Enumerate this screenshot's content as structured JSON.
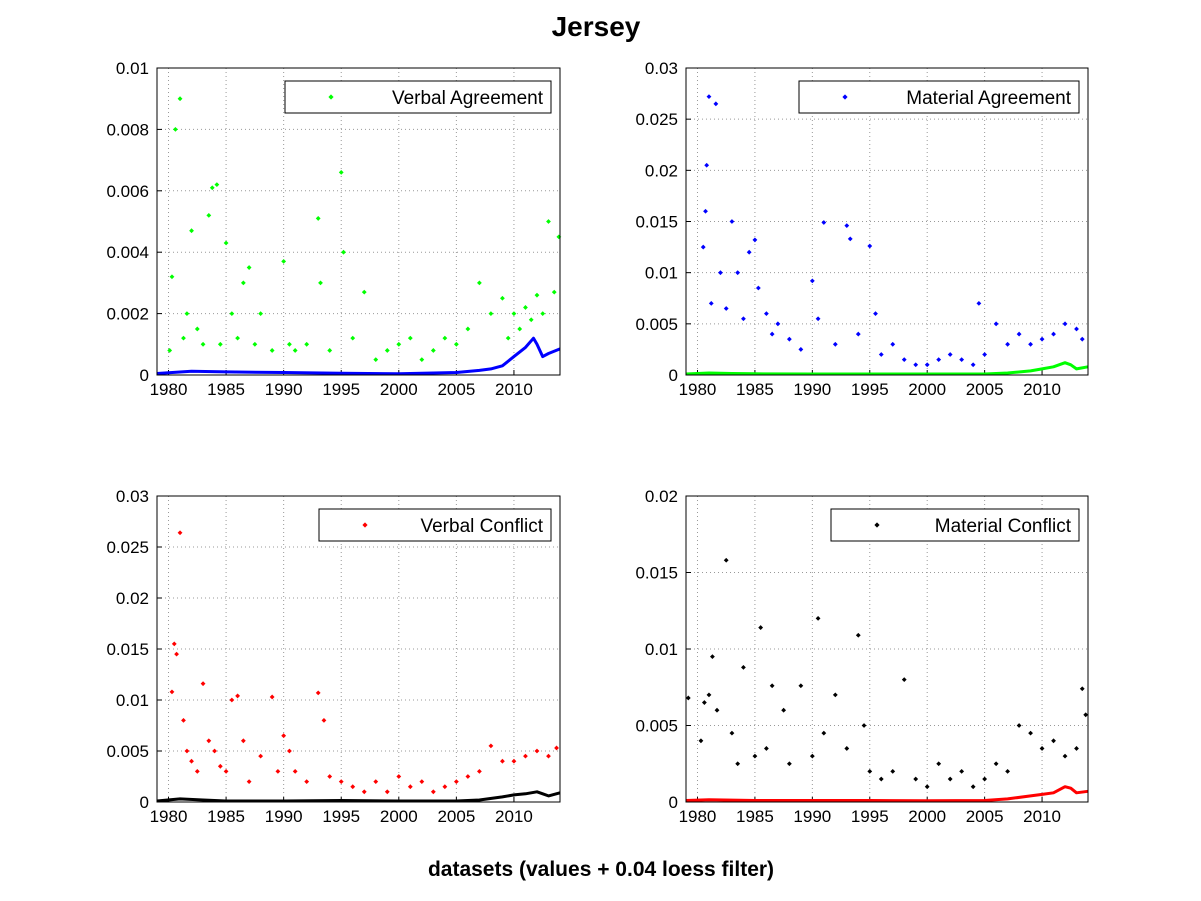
{
  "figure": {
    "title": "Jersey",
    "xlabel": "datasets (values + 0.04 loess filter)"
  },
  "chart_data": [
    {
      "type": "scatter",
      "xlim": [
        1979,
        2014
      ],
      "ylim": [
        0,
        0.01
      ],
      "x_ticks": [
        "1980",
        "1985",
        "1990",
        "1995",
        "2000",
        "2005",
        "2010"
      ],
      "y_ticks": [
        "0",
        "0.002",
        "0.004",
        "0.006",
        "0.008",
        "0.01"
      ],
      "grid": true,
      "legend_position": "top-right",
      "series": [
        {
          "name": "Verbal Agreement",
          "style": "points",
          "color": "#00ff00",
          "x": [
            1980.1,
            1980.3,
            1980.6,
            1981.0,
            1981.3,
            1981.6,
            1982.0,
            1982.5,
            1983.0,
            1983.5,
            1983.8,
            1984.2,
            1984.5,
            1985.0,
            1985.5,
            1986.0,
            1986.5,
            1987.0,
            1987.5,
            1988.0,
            1989.0,
            1990.0,
            1990.5,
            1991.0,
            1992.0,
            1993.0,
            1993.2,
            1994.0,
            1995.0,
            1995.2,
            1996.0,
            1997.0,
            1998.0,
            1999.0,
            2000.0,
            2001.0,
            2002.0,
            2003.0,
            2004.0,
            2005.0,
            2006.0,
            2007.0,
            2008.0,
            2009.0,
            2009.5,
            2010.0,
            2010.5,
            2011.0,
            2011.5,
            2012.0,
            2012.5,
            2013.0,
            2013.5,
            2013.9
          ],
          "y": [
            0.0008,
            0.0032,
            0.008,
            0.009,
            0.0012,
            0.002,
            0.0047,
            0.0015,
            0.001,
            0.0052,
            0.0061,
            0.0062,
            0.001,
            0.0043,
            0.002,
            0.0012,
            0.003,
            0.0035,
            0.001,
            0.002,
            0.0008,
            0.0037,
            0.001,
            0.0008,
            0.001,
            0.0051,
            0.003,
            0.0008,
            0.0066,
            0.004,
            0.0012,
            0.0027,
            0.0005,
            0.0008,
            0.001,
            0.0012,
            0.0005,
            0.0008,
            0.0012,
            0.001,
            0.0015,
            0.003,
            0.002,
            0.0025,
            0.0012,
            0.002,
            0.0015,
            0.0022,
            0.0018,
            0.0026,
            0.002,
            0.005,
            0.0027,
            0.0045
          ]
        },
        {
          "style": "line",
          "color": "#0000ff",
          "x": [
            1979,
            1982,
            1985,
            1990,
            1995,
            2000,
            2005,
            2007,
            2008,
            2009,
            2010,
            2011,
            2011.7,
            2012,
            2012.5,
            2013,
            2014
          ],
          "y": [
            5e-05,
            0.00012,
            0.0001,
            8e-05,
            6e-05,
            4e-05,
            8e-05,
            0.00015,
            0.0002,
            0.0003,
            0.0006,
            0.0009,
            0.0012,
            0.001,
            0.0006,
            0.0007,
            0.00085
          ]
        }
      ]
    },
    {
      "type": "scatter",
      "xlim": [
        1979,
        2014
      ],
      "ylim": [
        0,
        0.03
      ],
      "x_ticks": [
        "1980",
        "1985",
        "1990",
        "1995",
        "2000",
        "2005",
        "2010"
      ],
      "y_ticks": [
        "0",
        "0.005",
        "0.01",
        "0.015",
        "0.02",
        "0.025",
        "0.03"
      ],
      "grid": true,
      "legend_position": "top-right",
      "series": [
        {
          "name": "Material Agreement",
          "style": "points",
          "color": "#0000ff",
          "x": [
            1980.5,
            1980.7,
            1980.8,
            1981.0,
            1981.2,
            1981.6,
            1982.0,
            1982.5,
            1983.0,
            1983.5,
            1984.0,
            1984.5,
            1985.0,
            1985.3,
            1986.0,
            1986.5,
            1987.0,
            1988.0,
            1989.0,
            1990.0,
            1990.5,
            1991.0,
            1992.0,
            1993.0,
            1993.3,
            1994.0,
            1995.0,
            1995.5,
            1996.0,
            1997.0,
            1998.0,
            1999.0,
            2000.0,
            2001.0,
            2002.0,
            2003.0,
            2004.0,
            2004.5,
            2005.0,
            2006.0,
            2007.0,
            2008.0,
            2009.0,
            2010.0,
            2011.0,
            2012.0,
            2013.0,
            2013.5
          ],
          "y": [
            0.0125,
            0.016,
            0.0205,
            0.0272,
            0.007,
            0.0265,
            0.01,
            0.0065,
            0.015,
            0.01,
            0.0055,
            0.012,
            0.0132,
            0.0085,
            0.006,
            0.004,
            0.005,
            0.0035,
            0.0025,
            0.0092,
            0.0055,
            0.0149,
            0.003,
            0.0146,
            0.0133,
            0.004,
            0.0126,
            0.006,
            0.002,
            0.003,
            0.0015,
            0.001,
            0.001,
            0.0015,
            0.002,
            0.0015,
            0.001,
            0.007,
            0.002,
            0.005,
            0.003,
            0.004,
            0.003,
            0.0035,
            0.004,
            0.005,
            0.0045,
            0.0035
          ]
        },
        {
          "style": "line",
          "color": "#00ff00",
          "x": [
            1979,
            1981,
            1983,
            1985,
            1990,
            1995,
            2000,
            2005,
            2007,
            2009,
            2010,
            2011,
            2012,
            2012.5,
            2013,
            2014
          ],
          "y": [
            0.0001,
            0.0002,
            0.00015,
            0.00012,
            0.0001,
            0.0001,
            0.0001,
            0.0001,
            0.0002,
            0.0004,
            0.0006,
            0.0008,
            0.0012,
            0.001,
            0.0006,
            0.0008
          ]
        }
      ]
    },
    {
      "type": "scatter",
      "xlim": [
        1979,
        2014
      ],
      "ylim": [
        0,
        0.03
      ],
      "x_ticks": [
        "1980",
        "1985",
        "1990",
        "1995",
        "2000",
        "2005",
        "2010"
      ],
      "y_ticks": [
        "0",
        "0.005",
        "0.01",
        "0.015",
        "0.02",
        "0.025",
        "0.03"
      ],
      "grid": true,
      "legend_position": "top-right",
      "series": [
        {
          "name": "Verbal Conflict",
          "style": "points",
          "color": "#ff0000",
          "x": [
            1980.3,
            1980.5,
            1980.7,
            1981.0,
            1981.3,
            1981.6,
            1982.0,
            1982.5,
            1983.0,
            1983.5,
            1984.0,
            1984.5,
            1985.0,
            1985.5,
            1986.0,
            1986.5,
            1987.0,
            1988.0,
            1989.0,
            1989.5,
            1990.0,
            1990.5,
            1991.0,
            1992.0,
            1993.0,
            1993.5,
            1994.0,
            1995.0,
            1996.0,
            1997.0,
            1998.0,
            1999.0,
            2000.0,
            2001.0,
            2002.0,
            2003.0,
            2004.0,
            2005.0,
            2006.0,
            2007.0,
            2008.0,
            2009.0,
            2010.0,
            2011.0,
            2012.0,
            2013.0,
            2013.7
          ],
          "y": [
            0.0108,
            0.0155,
            0.0145,
            0.0264,
            0.008,
            0.005,
            0.004,
            0.003,
            0.0116,
            0.006,
            0.005,
            0.0035,
            0.003,
            0.01,
            0.0104,
            0.006,
            0.002,
            0.0045,
            0.0103,
            0.003,
            0.0065,
            0.005,
            0.003,
            0.002,
            0.0107,
            0.008,
            0.0025,
            0.002,
            0.0015,
            0.001,
            0.002,
            0.001,
            0.0025,
            0.0015,
            0.002,
            0.001,
            0.0015,
            0.002,
            0.0025,
            0.003,
            0.0055,
            0.004,
            0.004,
            0.0045,
            0.005,
            0.0045,
            0.0053
          ]
        },
        {
          "style": "line",
          "color": "#000000",
          "x": [
            1979,
            1981,
            1983,
            1985,
            1990,
            1995,
            2000,
            2005,
            2007,
            2009,
            2010,
            2011,
            2012,
            2012.5,
            2013,
            2014
          ],
          "y": [
            0.0001,
            0.0003,
            0.0002,
            0.0001,
            0.0001,
            0.00015,
            0.0001,
            0.0001,
            0.0002,
            0.0005,
            0.0007,
            0.0008,
            0.001,
            0.0008,
            0.0006,
            0.0009
          ]
        }
      ]
    },
    {
      "type": "scatter",
      "xlim": [
        1979,
        2014
      ],
      "ylim": [
        0,
        0.02
      ],
      "x_ticks": [
        "1980",
        "1985",
        "1990",
        "1995",
        "2000",
        "2005",
        "2010"
      ],
      "y_ticks": [
        "0",
        "0.005",
        "0.01",
        "0.015",
        "0.02"
      ],
      "grid": true,
      "legend_position": "top-right",
      "series": [
        {
          "name": "Material Conflict",
          "style": "points",
          "color": "#000000",
          "x": [
            1979.2,
            1980.3,
            1980.6,
            1981.0,
            1981.3,
            1981.7,
            1982.5,
            1983.0,
            1983.5,
            1984.0,
            1985.0,
            1985.5,
            1986.0,
            1986.5,
            1987.5,
            1988.0,
            1989.0,
            1990.0,
            1990.5,
            1991.0,
            1992.0,
            1993.0,
            1994.0,
            1994.5,
            1995.0,
            1996.0,
            1997.0,
            1998.0,
            1999.0,
            2000.0,
            2001.0,
            2002.0,
            2003.0,
            2004.0,
            2005.0,
            2006.0,
            2007.0,
            2008.0,
            2009.0,
            2010.0,
            2011.0,
            2012.0,
            2013.0,
            2013.5,
            2013.8
          ],
          "y": [
            0.0068,
            0.004,
            0.0065,
            0.007,
            0.0095,
            0.006,
            0.0158,
            0.0045,
            0.0025,
            0.0088,
            0.003,
            0.0114,
            0.0035,
            0.0076,
            0.006,
            0.0025,
            0.0076,
            0.003,
            0.012,
            0.0045,
            0.007,
            0.0035,
            0.0109,
            0.005,
            0.002,
            0.0015,
            0.002,
            0.008,
            0.0015,
            0.001,
            0.0025,
            0.0015,
            0.002,
            0.001,
            0.0015,
            0.0025,
            0.002,
            0.005,
            0.0045,
            0.0035,
            0.004,
            0.003,
            0.0035,
            0.0074,
            0.0057
          ]
        },
        {
          "style": "line",
          "color": "#ff0000",
          "x": [
            1979,
            1981,
            1985,
            1990,
            1995,
            2000,
            2005,
            2007,
            2009,
            2010,
            2011,
            2012,
            2012.5,
            2013,
            2014
          ],
          "y": [
            0.0001,
            0.00015,
            0.0001,
            0.0001,
            0.0001,
            8e-05,
            0.0001,
            0.0002,
            0.0004,
            0.0005,
            0.0006,
            0.001,
            0.0009,
            0.0006,
            0.0007
          ]
        }
      ]
    }
  ]
}
